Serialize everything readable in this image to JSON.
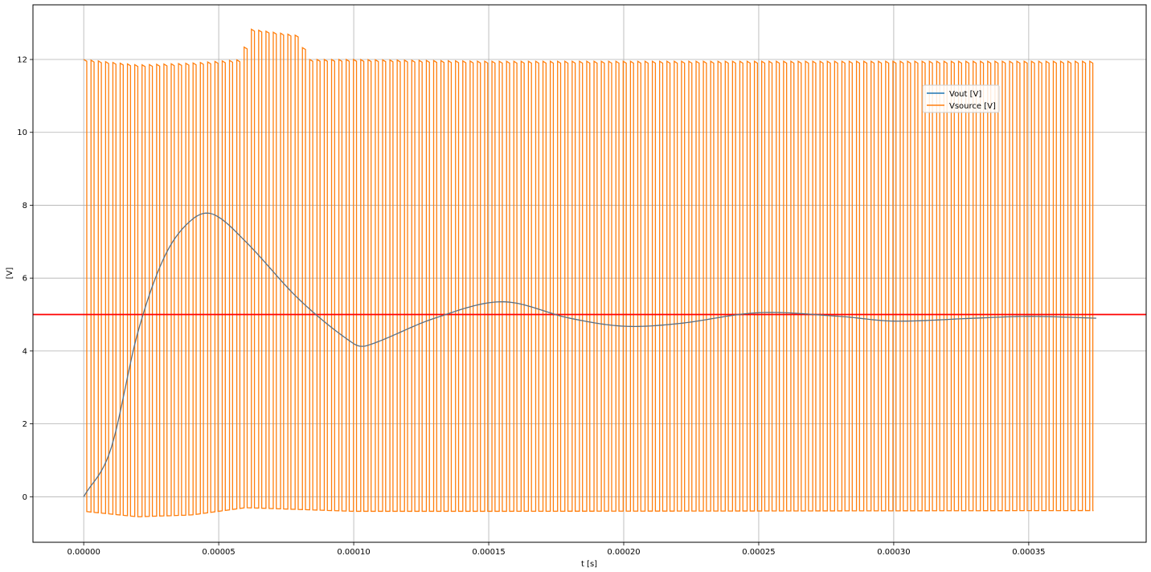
{
  "chart_data": {
    "type": "line",
    "title": "",
    "xlabel": "t [s]",
    "ylabel": "[V]",
    "xlim": [
      -1.88e-05,
      0.0003935
    ],
    "ylim": [
      -1.25,
      13.5
    ],
    "grid": true,
    "legend_position": "upper-right",
    "x_ticks": [
      0,
      5e-05,
      0.0001,
      0.00015,
      0.0002,
      0.00025,
      0.0003,
      0.00035
    ],
    "x_tick_labels": [
      "0.00000",
      "0.00005",
      "0.00010",
      "0.00015",
      "0.00020",
      "0.00025",
      "0.00030",
      "0.00035"
    ],
    "y_ticks": [
      0,
      2,
      4,
      6,
      8,
      10,
      12
    ],
    "y_tick_labels": [
      "0",
      "2",
      "4",
      "6",
      "8",
      "10",
      "12"
    ],
    "series": [
      {
        "name": "Vout [V]",
        "color": "#1f77b4",
        "x": [
          0,
          1e-05,
          2e-05,
          3e-05,
          4e-05,
          4.8e-05,
          6e-05,
          8e-05,
          0.0001,
          0.000105,
          0.00013,
          0.000155,
          0.00018,
          0.0002,
          0.00022,
          0.00025,
          0.00028,
          0.0003,
          0.00033,
          0.00035,
          0.000375
        ],
        "values": [
          0,
          1.3,
          4.5,
          6.6,
          7.6,
          7.75,
          7.0,
          5.4,
          4.2,
          4.15,
          4.9,
          5.35,
          4.9,
          4.68,
          4.75,
          5.05,
          4.95,
          4.82,
          4.9,
          4.95,
          4.9
        ]
      },
      {
        "name": "Vsource [V]",
        "color": "#ff7f0e",
        "period": 2.7e-06,
        "duty": 0.42,
        "t_end": 0.000374,
        "high_x": [
          0,
          2e-05,
          4e-05,
          5.9e-05,
          6e-05,
          8e-05,
          8.2e-05,
          0.0001,
          0.00015,
          0.000374
        ],
        "high_values": [
          12.0,
          11.85,
          11.9,
          12.0,
          12.85,
          12.65,
          12.0,
          12.0,
          11.95,
          11.95
        ],
        "low_x": [
          0,
          2e-05,
          4e-05,
          6e-05,
          0.0001,
          0.00015,
          0.000374
        ],
        "low_values": [
          -0.4,
          -0.55,
          -0.5,
          -0.3,
          -0.4,
          -0.4,
          -0.38
        ]
      }
    ],
    "reference_line": {
      "y": 5,
      "color": "#ff0000"
    }
  }
}
